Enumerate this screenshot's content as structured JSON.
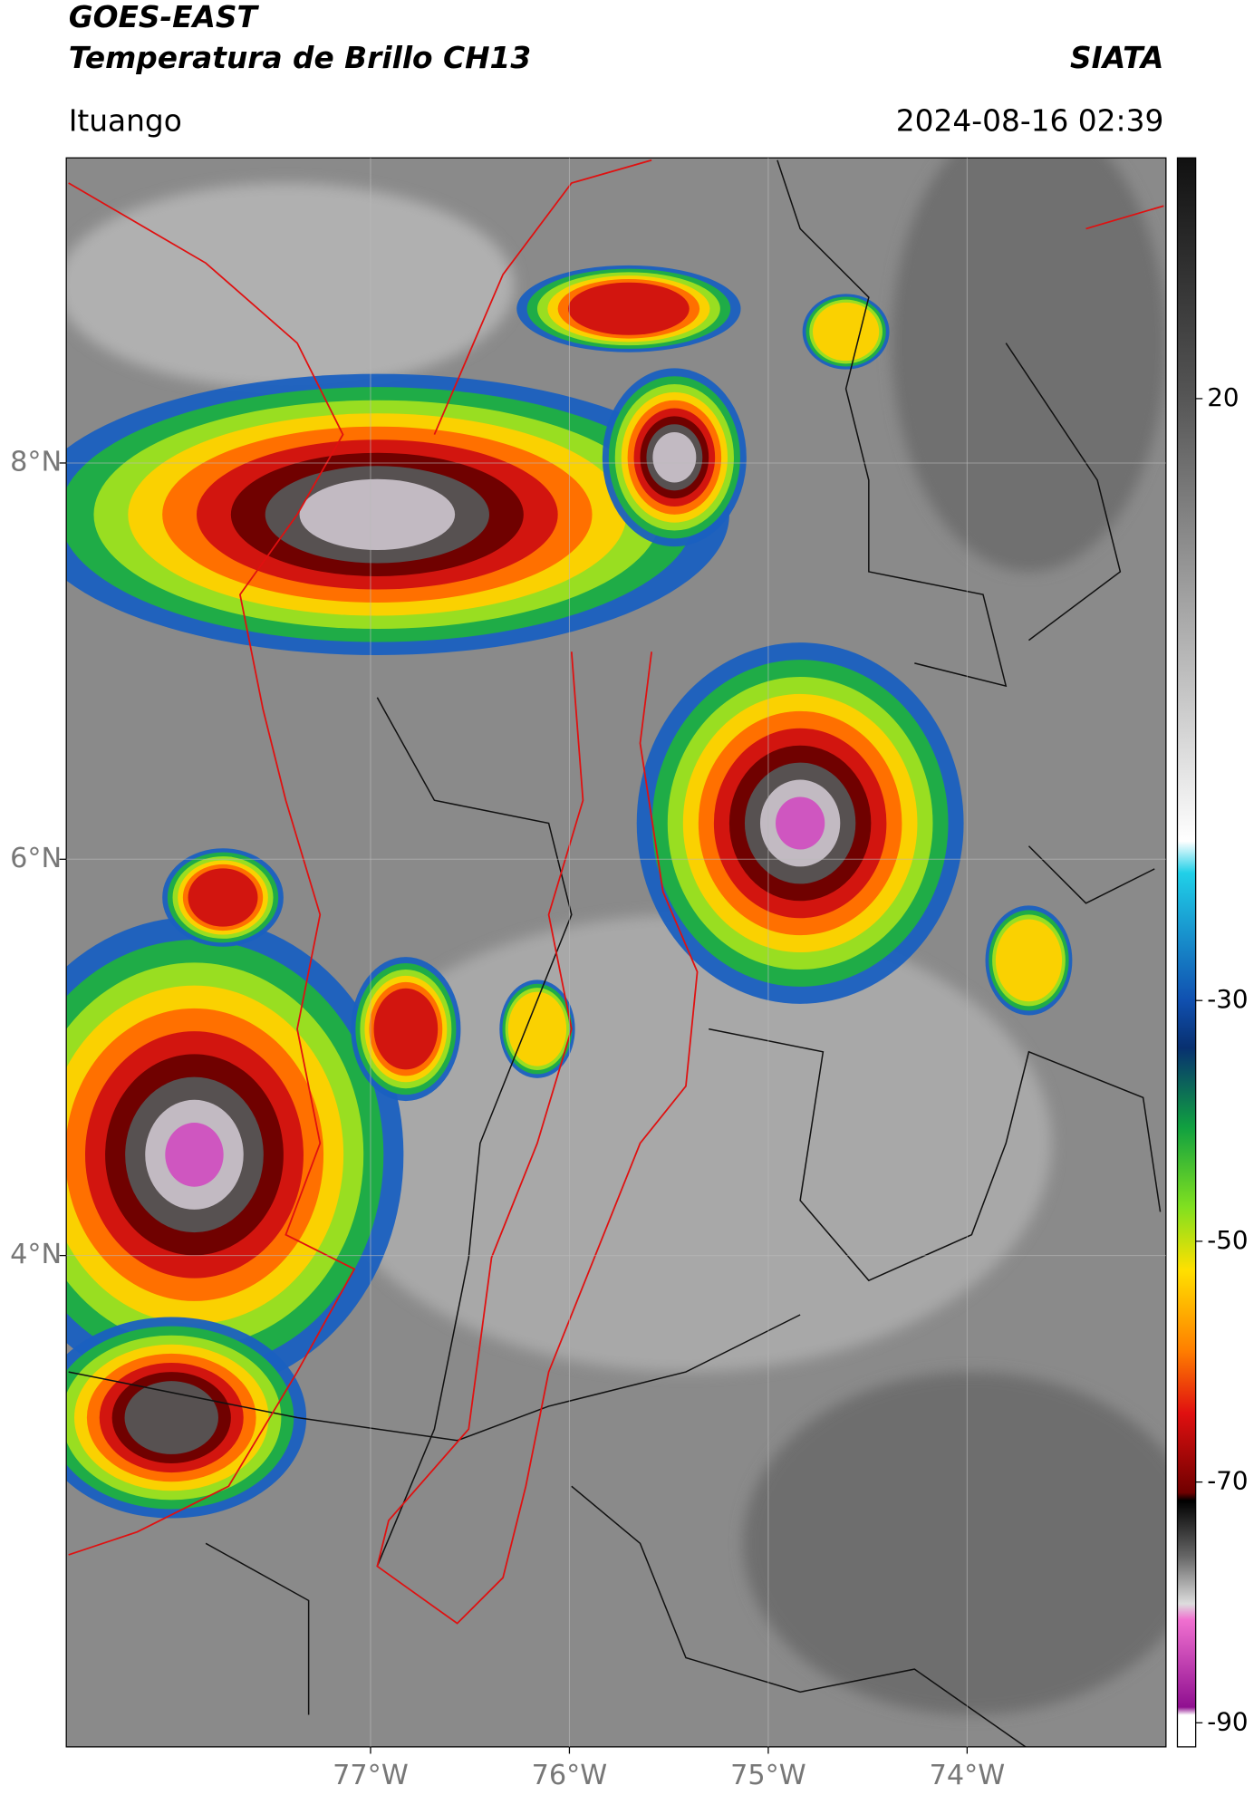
{
  "chart_data": {
    "type": "map",
    "title": "GOES-EAST",
    "subtitle": "Temperatura de Brillo CH13",
    "source": "SIATA",
    "location": "Ituango",
    "datetime": "2024-08-16 02:39",
    "xlim": [
      -78.53,
      -73.0
    ],
    "ylim": [
      1.52,
      9.54
    ],
    "xticks": [
      {
        "value": -77,
        "label": "77°W"
      },
      {
        "value": -76,
        "label": "76°W"
      },
      {
        "value": -75,
        "label": "75°W"
      },
      {
        "value": -74,
        "label": "74°W"
      }
    ],
    "yticks": [
      {
        "value": 4,
        "label": "4°N"
      },
      {
        "value": 6,
        "label": "6°N"
      },
      {
        "value": 8,
        "label": "8°N"
      }
    ],
    "grid": true,
    "colorbar": {
      "lim": [
        -92,
        40
      ],
      "ticks": [
        20,
        -30,
        -50,
        -70,
        -90
      ]
    }
  }
}
